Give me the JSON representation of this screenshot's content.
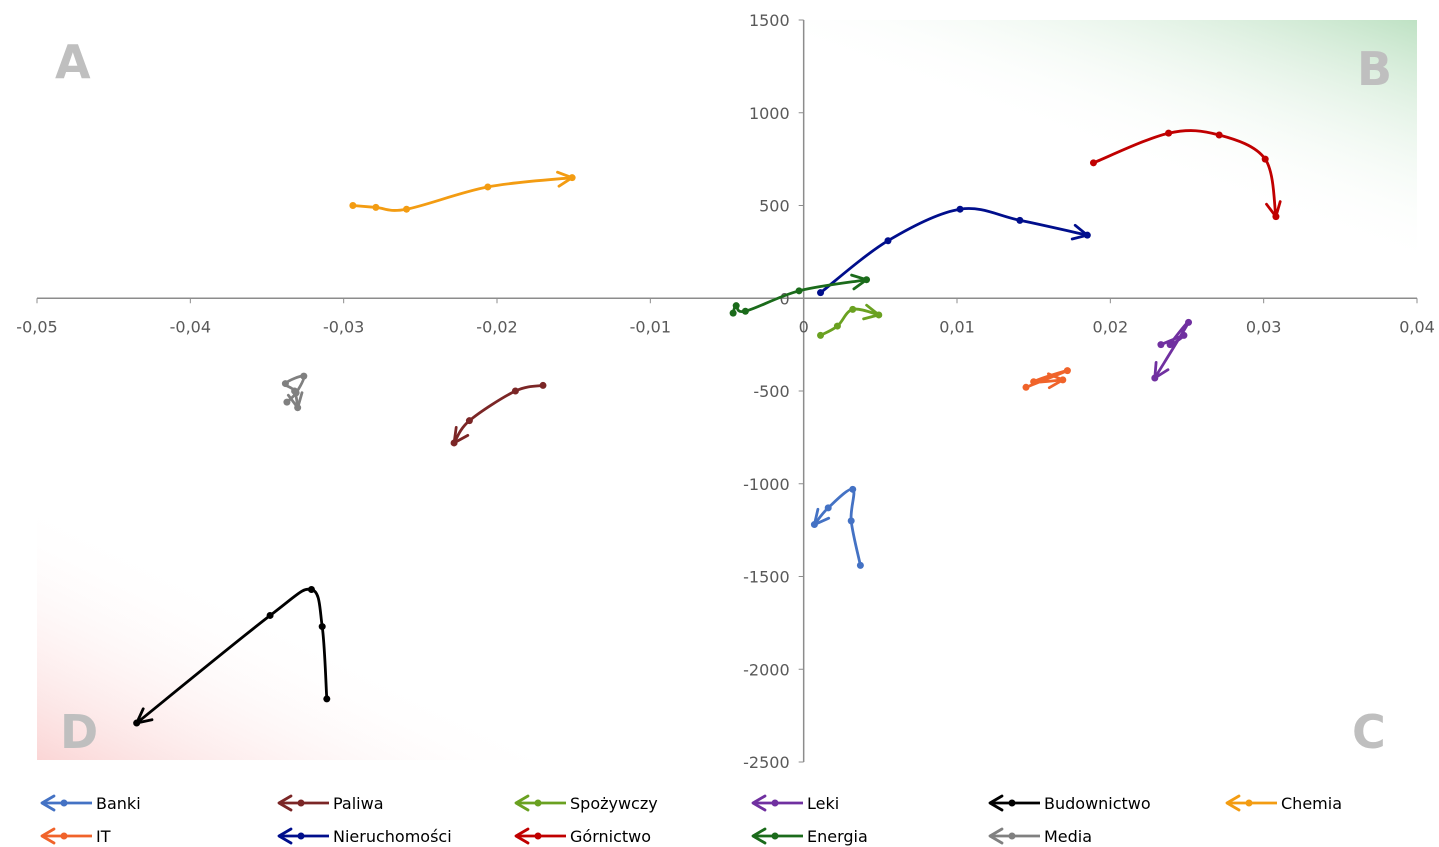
{
  "chart_data": {
    "type": "line",
    "title": "",
    "xlabel": "",
    "ylabel": "",
    "xlim": [
      -0.05,
      0.04
    ],
    "ylim": [
      -2500,
      1500
    ],
    "x_ticks": [
      "-0,05",
      "-0,04",
      "-0,03",
      "-0,02",
      "-0,01",
      "0",
      "0,01",
      "0,02",
      "0,03",
      "0,04"
    ],
    "y_ticks": [
      "1500",
      "1000",
      "500",
      "0",
      "-500",
      "-1000",
      "-1500",
      "-2000",
      "-2500"
    ],
    "quadrant_labels": [
      "A",
      "B",
      "C",
      "D"
    ],
    "legend_position": "bottom",
    "series": [
      {
        "name": "Banki",
        "color": "#4472c4",
        "x": [
          0.0037,
          0.0031,
          0.0032,
          0.0016,
          0.0007
        ],
        "y": [
          -1440,
          -1200,
          -1030,
          -1130,
          -1220
        ]
      },
      {
        "name": "Paliwa",
        "color": "#7b2626",
        "x": [
          -0.017,
          -0.0188,
          -0.0218,
          -0.0228
        ],
        "y": [
          -470,
          -500,
          -660,
          -780
        ]
      },
      {
        "name": "Spożywczy",
        "color": "#6aa121",
        "x": [
          0.0011,
          0.0022,
          0.0032,
          0.0049
        ],
        "y": [
          -200,
          -150,
          -60,
          -90
        ]
      },
      {
        "name": "Leki",
        "color": "#7030a0",
        "x": [
          0.0233,
          0.0248,
          0.0239,
          0.0251,
          0.0229
        ],
        "y": [
          -250,
          -200,
          -250,
          -130,
          -430
        ]
      },
      {
        "name": "Budownictwo",
        "color": "#000000",
        "x": [
          -0.0311,
          -0.0314,
          -0.0321,
          -0.0348,
          -0.0435
        ],
        "y": [
          -2160,
          -1770,
          -1570,
          -1710,
          -2290
        ]
      },
      {
        "name": "Chemia",
        "color": "#f39c12",
        "x": [
          -0.0294,
          -0.0279,
          -0.0259,
          -0.0206,
          -0.0151
        ],
        "y": [
          500,
          490,
          480,
          600,
          650
        ]
      },
      {
        "name": "IT",
        "color": "#f0632a",
        "x": [
          0.0145,
          0.0172,
          0.015,
          0.0169
        ],
        "y": [
          -480,
          -390,
          -450,
          -440
        ]
      },
      {
        "name": "Nieruchomości",
        "color": "#000e8c",
        "x": [
          0.0011,
          0.0055,
          0.0102,
          0.0141,
          0.0185
        ],
        "y": [
          30,
          310,
          480,
          420,
          340
        ]
      },
      {
        "name": "Górnictwo",
        "color": "#c00000",
        "x": [
          0.0189,
          0.0238,
          0.0271,
          0.0301,
          0.0308
        ],
        "y": [
          730,
          890,
          880,
          750,
          440
        ]
      },
      {
        "name": "Energia",
        "color": "#1b6b1b",
        "x": [
          -0.0046,
          -0.0044,
          -0.0038,
          -0.0003,
          0.0041
        ],
        "y": [
          -80,
          -40,
          -70,
          40,
          100
        ]
      },
      {
        "name": "Media",
        "color": "#808080",
        "x": [
          -0.0337,
          -0.0331,
          -0.0326,
          -0.0338,
          -0.0332,
          -0.033
        ],
        "y": [
          -560,
          -510,
          -420,
          -460,
          -500,
          -590
        ]
      }
    ]
  }
}
